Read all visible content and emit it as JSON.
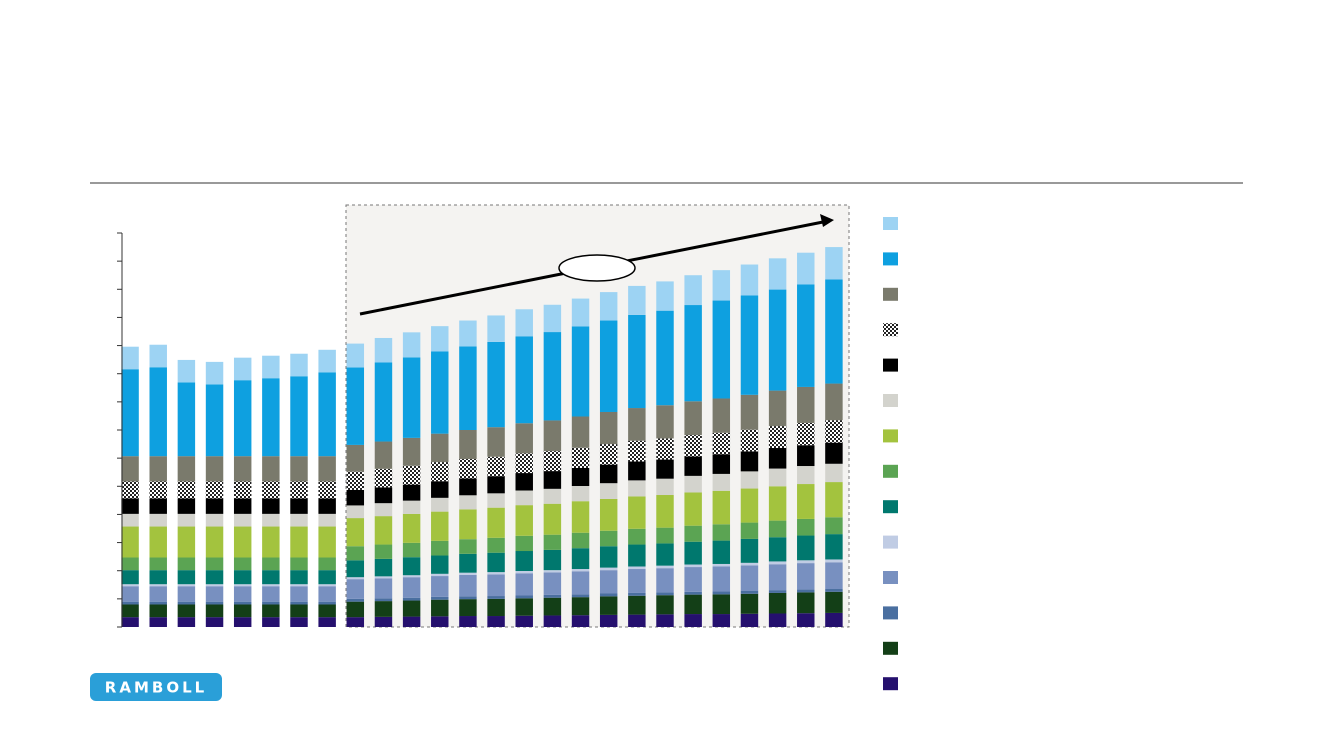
{
  "chart_data": {
    "type": "stacked-bar",
    "categories": [
      null,
      null,
      null,
      null,
      null,
      null,
      null,
      null,
      null,
      null,
      null,
      null,
      null,
      null,
      null,
      null,
      null,
      null,
      null,
      null,
      null,
      null,
      null,
      null,
      null,
      null
    ],
    "ylim": [
      0,
      14
    ],
    "yticks": [
      0,
      1,
      2,
      3,
      4,
      5,
      6,
      7,
      8,
      9,
      10,
      11,
      12,
      13,
      14
    ],
    "series": [
      {
        "color": "#25106e",
        "values": [
          0.35,
          0.35,
          0.35,
          0.35,
          0.35,
          0.35,
          0.35,
          0.35,
          0.35,
          0.36,
          0.37,
          0.38,
          0.39,
          0.39,
          0.4,
          0.41,
          0.42,
          0.43,
          0.44,
          0.45,
          0.46,
          0.46,
          0.47,
          0.48,
          0.49,
          0.5
        ]
      },
      {
        "color": "#133f17",
        "values": [
          0.45,
          0.45,
          0.45,
          0.45,
          0.45,
          0.45,
          0.45,
          0.45,
          0.55,
          0.56,
          0.57,
          0.59,
          0.6,
          0.61,
          0.62,
          0.63,
          0.64,
          0.66,
          0.67,
          0.68,
          0.69,
          0.7,
          0.71,
          0.73,
          0.74,
          0.75
        ]
      },
      {
        "color": "#4a6fa0",
        "values": [
          0.1,
          0.1,
          0.1,
          0.1,
          0.1,
          0.1,
          0.1,
          0.1,
          0.1,
          0.1,
          0.1,
          0.1,
          0.1,
          0.1,
          0.1,
          0.1,
          0.1,
          0.1,
          0.1,
          0.1,
          0.1,
          0.1,
          0.1,
          0.1,
          0.1,
          0.1
        ]
      },
      {
        "color": "#7890c0",
        "values": [
          0.55,
          0.55,
          0.55,
          0.55,
          0.55,
          0.55,
          0.55,
          0.55,
          0.7,
          0.71,
          0.73,
          0.74,
          0.76,
          0.77,
          0.79,
          0.8,
          0.82,
          0.83,
          0.85,
          0.86,
          0.88,
          0.89,
          0.91,
          0.92,
          0.94,
          0.95
        ]
      },
      {
        "color": "#c0cce4",
        "values": [
          0.07,
          0.07,
          0.07,
          0.07,
          0.07,
          0.07,
          0.07,
          0.07,
          0.07,
          0.07,
          0.07,
          0.08,
          0.08,
          0.08,
          0.08,
          0.08,
          0.08,
          0.09,
          0.09,
          0.09,
          0.09,
          0.09,
          0.09,
          0.1,
          0.1,
          0.1
        ]
      },
      {
        "color": "#00786e",
        "values": [
          0.5,
          0.5,
          0.5,
          0.5,
          0.5,
          0.5,
          0.5,
          0.5,
          0.6,
          0.62,
          0.64,
          0.65,
          0.67,
          0.69,
          0.71,
          0.72,
          0.74,
          0.76,
          0.78,
          0.79,
          0.81,
          0.83,
          0.85,
          0.86,
          0.88,
          0.9
        ]
      },
      {
        "color": "#5ba453",
        "values": [
          0.45,
          0.45,
          0.45,
          0.45,
          0.45,
          0.45,
          0.45,
          0.45,
          0.5,
          0.51,
          0.51,
          0.52,
          0.52,
          0.53,
          0.54,
          0.54,
          0.55,
          0.55,
          0.56,
          0.56,
          0.57,
          0.58,
          0.58,
          0.59,
          0.59,
          0.6
        ]
      },
      {
        "color": "#a3c33e",
        "values": [
          1.1,
          1.1,
          1.1,
          1.1,
          1.1,
          1.1,
          1.1,
          1.1,
          1.0,
          1.01,
          1.03,
          1.04,
          1.06,
          1.07,
          1.09,
          1.1,
          1.12,
          1.13,
          1.15,
          1.16,
          1.18,
          1.19,
          1.21,
          1.22,
          1.24,
          1.25
        ]
      },
      {
        "color": "#d3d3cd",
        "values": [
          0.45,
          0.45,
          0.45,
          0.45,
          0.45,
          0.45,
          0.45,
          0.45,
          0.45,
          0.46,
          0.47,
          0.49,
          0.5,
          0.51,
          0.52,
          0.53,
          0.54,
          0.56,
          0.57,
          0.58,
          0.59,
          0.6,
          0.61,
          0.63,
          0.64,
          0.65
        ]
      },
      {
        "color": "#000000",
        "values": [
          0.55,
          0.55,
          0.55,
          0.55,
          0.55,
          0.55,
          0.55,
          0.55,
          0.55,
          0.56,
          0.57,
          0.59,
          0.6,
          0.61,
          0.62,
          0.63,
          0.64,
          0.66,
          0.67,
          0.68,
          0.69,
          0.7,
          0.71,
          0.73,
          0.74,
          0.75
        ]
      },
      {
        "color": "#333333",
        "pattern": "checker",
        "values": [
          0.6,
          0.6,
          0.6,
          0.6,
          0.6,
          0.6,
          0.6,
          0.6,
          0.65,
          0.66,
          0.67,
          0.68,
          0.69,
          0.69,
          0.7,
          0.71,
          0.72,
          0.73,
          0.74,
          0.75,
          0.76,
          0.76,
          0.77,
          0.78,
          0.79,
          0.8
        ]
      },
      {
        "color": "#7a7a6c",
        "values": [
          0.9,
          0.9,
          0.9,
          0.9,
          0.9,
          0.9,
          0.9,
          0.9,
          0.95,
          0.97,
          0.99,
          1.01,
          1.03,
          1.05,
          1.07,
          1.09,
          1.11,
          1.14,
          1.16,
          1.18,
          1.2,
          1.22,
          1.24,
          1.26,
          1.28,
          1.3
        ]
      },
      {
        "color": "#0ea0e0",
        "values": [
          3.09,
          3.16,
          2.62,
          2.55,
          2.7,
          2.77,
          2.84,
          2.98,
          2.75,
          2.81,
          2.86,
          2.92,
          2.97,
          3.03,
          3.09,
          3.14,
          3.2,
          3.25,
          3.31,
          3.36,
          3.42,
          3.48,
          3.53,
          3.59,
          3.64,
          3.7
        ]
      },
      {
        "color": "#9dd3f3",
        "values": [
          0.8,
          0.8,
          0.8,
          0.8,
          0.8,
          0.8,
          0.8,
          0.8,
          0.85,
          0.87,
          0.89,
          0.9,
          0.92,
          0.94,
          0.96,
          0.97,
          0.99,
          1.01,
          1.03,
          1.04,
          1.06,
          1.08,
          1.1,
          1.11,
          1.13,
          1.15
        ]
      }
    ]
  },
  "logo": "RAMBOLL"
}
